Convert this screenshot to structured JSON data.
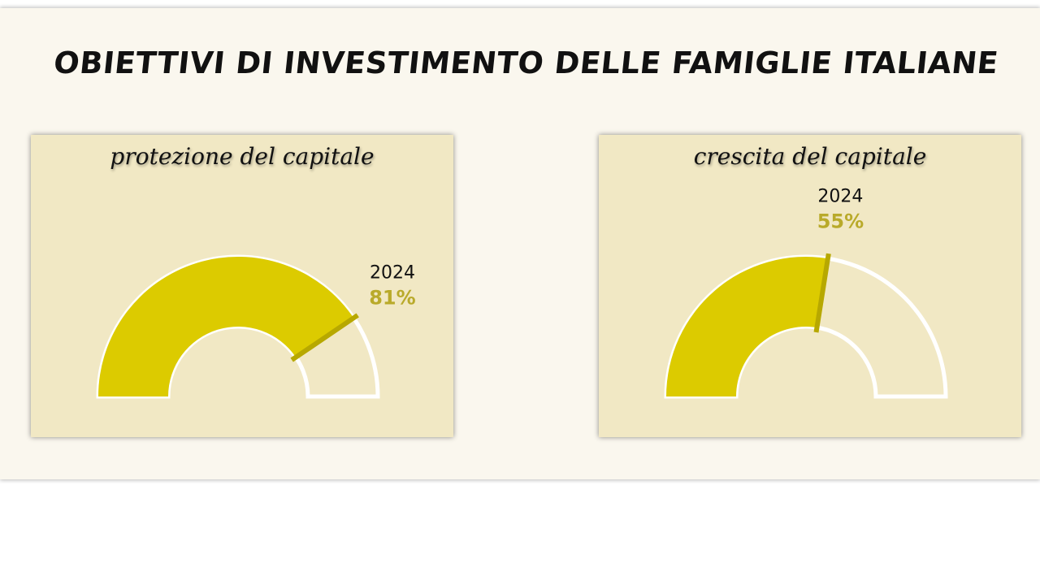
{
  "title": "OBIETTIVI DI INVESTIMENTO DELLE FAMIGLIE ITALIANE",
  "colors": {
    "fill": "#dccb00",
    "empty": "#f1e8c4",
    "needle": "#b7a800",
    "pct_text": "#b9aa2a",
    "outline": "#ffffff"
  },
  "chart_data": [
    {
      "type": "gauge",
      "title": "protezione del capitale",
      "year_label": "2024",
      "value": 81,
      "value_label": "81%",
      "range": [
        0,
        100
      ]
    },
    {
      "type": "gauge",
      "title": "crescita del capitale",
      "year_label": "2024",
      "value": 55,
      "value_label": "55%",
      "range": [
        0,
        100
      ]
    }
  ]
}
